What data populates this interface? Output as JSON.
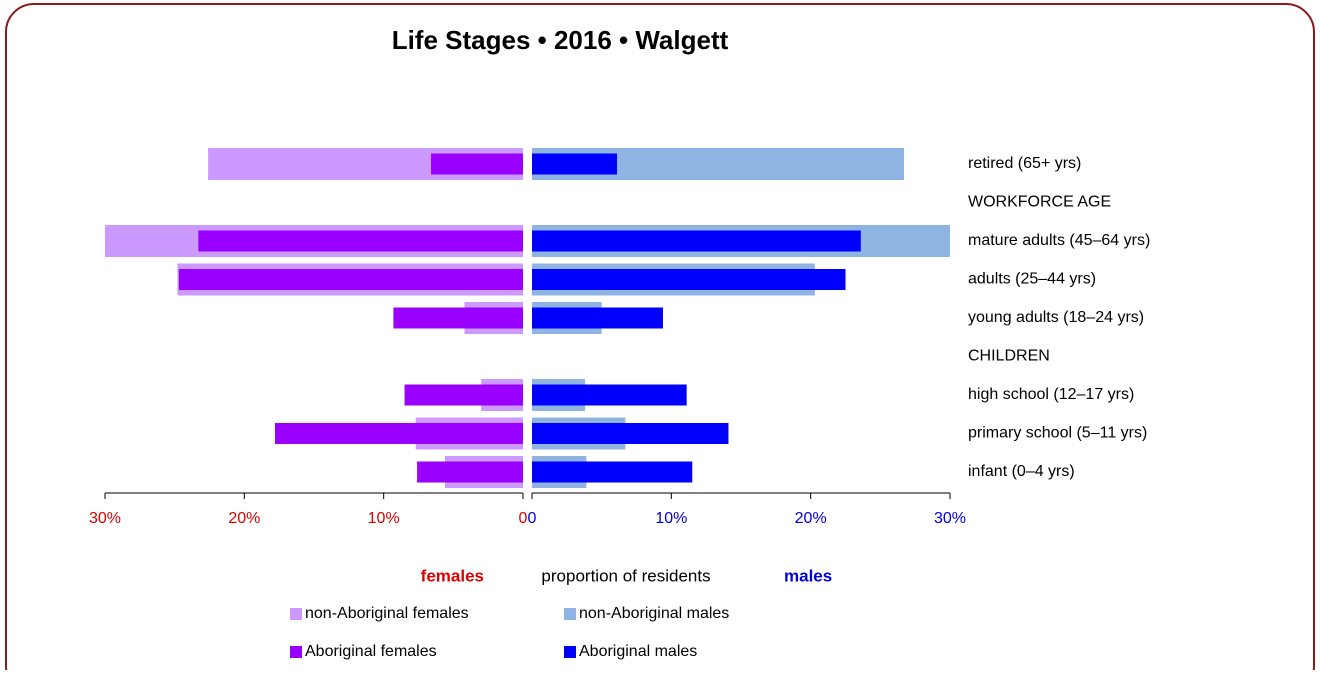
{
  "chart_data": {
    "type": "bar",
    "title": "Life Stages  •  2016  •  Walgett",
    "categories": [
      "retired (65+ yrs)",
      "WORKFORCE AGE",
      "mature adults (45–64 yrs)",
      "adults (25–44 yrs)",
      "young adults (18–24 yrs)",
      "CHILDREN",
      "high school (12–17 yrs)",
      "primary school (5–11 yrs)",
      "infant (0–4 yrs)"
    ],
    "series": [
      {
        "name": "non-Aboriginal females",
        "color": "#cc99ff",
        "side": "left",
        "values": [
          22.6,
          null,
          30.0,
          24.8,
          4.2,
          null,
          3.0,
          7.7,
          5.6
        ]
      },
      {
        "name": "Aboriginal females",
        "color": "#9900ff",
        "side": "left",
        "values": [
          6.6,
          null,
          23.3,
          24.7,
          9.3,
          null,
          8.5,
          17.8,
          7.6
        ]
      },
      {
        "name": "non-Aboriginal males",
        "color": "#8db4e2",
        "side": "right",
        "values": [
          26.7,
          null,
          30.0,
          20.3,
          5.0,
          null,
          3.8,
          6.7,
          3.9
        ]
      },
      {
        "name": "Aboriginal males",
        "color": "#0000ff",
        "side": "right",
        "values": [
          6.1,
          null,
          23.6,
          22.5,
          9.4,
          null,
          11.1,
          14.1,
          11.5
        ]
      }
    ],
    "xlim": [
      0,
      30
    ],
    "xticks_left": [
      {
        "value": 30,
        "label": "30%"
      },
      {
        "value": 20,
        "label": "20%"
      },
      {
        "value": 10,
        "label": "10%"
      },
      0
    ],
    "xticks_right": [
      0,
      {
        "value": 10,
        "label": "10%"
      },
      {
        "value": 20,
        "label": "20%"
      },
      {
        "value": 30,
        "label": "30%"
      }
    ],
    "left_label": "females",
    "xlabel": "proportion of residents",
    "right_label": "males"
  }
}
